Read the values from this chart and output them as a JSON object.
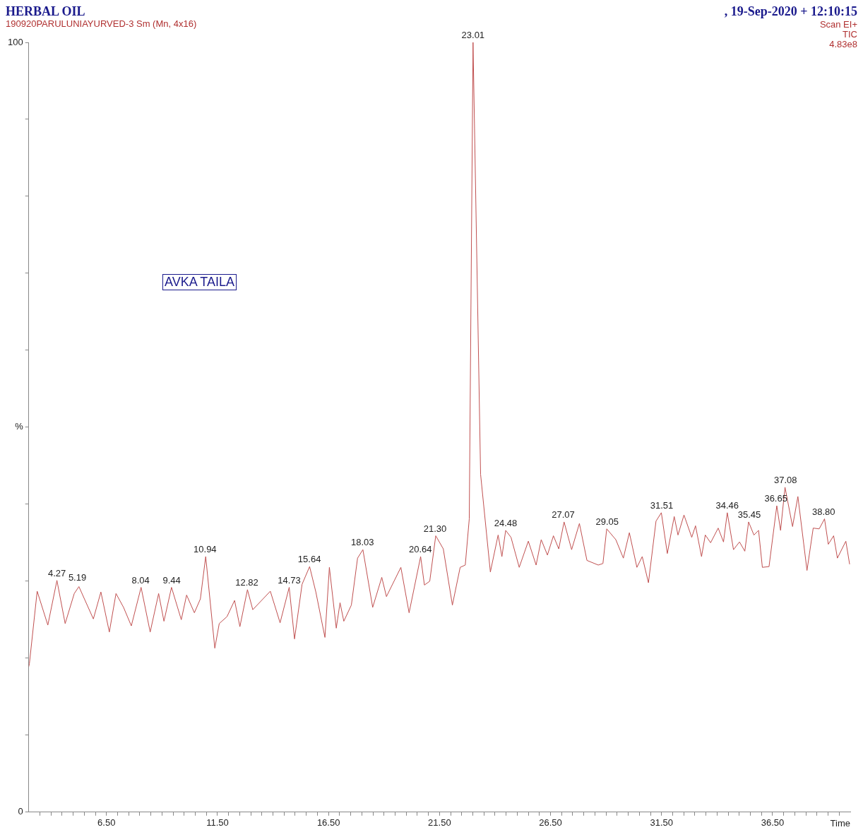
{
  "chart_data": {
    "type": "line",
    "title": "HERBAL OIL",
    "subtitle": "190920PARULUNIAYURVED-3 Sm (Mn, 4x16)",
    "xlabel": "Time",
    "annotations": [
      ", 19-Sep-2020 + 12:10:15",
      "Scan EI+",
      "TIC",
      "4.83e8",
      "AVKA TAILA",
      {
        "text": "4.27",
        "x": 4.27,
        "y": 30.1
      },
      {
        "text": "5.19",
        "x": 5.19,
        "y": 29.5
      },
      {
        "text": "8.04",
        "x": 8.04,
        "y": 29.2
      },
      {
        "text": "9.44",
        "x": 9.44,
        "y": 29.2
      },
      {
        "text": "10.94",
        "x": 10.94,
        "y": 33.2
      },
      {
        "text": "12.82",
        "x": 12.82,
        "y": 28.9
      },
      {
        "text": "14.73",
        "x": 14.73,
        "y": 29.2
      },
      {
        "text": "15.64",
        "x": 15.64,
        "y": 31.9
      },
      {
        "text": "18.03",
        "x": 18.03,
        "y": 34.1
      },
      {
        "text": "20.64",
        "x": 20.64,
        "y": 33.2
      },
      {
        "text": "21.30",
        "x": 21.3,
        "y": 35.9
      },
      {
        "text": "23.01",
        "x": 23.01,
        "y": 100
      },
      {
        "text": "24.48",
        "x": 24.48,
        "y": 36.6
      },
      {
        "text": "27.07",
        "x": 27.07,
        "y": 37.7
      },
      {
        "text": "29.05",
        "x": 29.05,
        "y": 36.8
      },
      {
        "text": "31.51",
        "x": 31.51,
        "y": 38.9
      },
      {
        "text": "34.46",
        "x": 34.46,
        "y": 38.9
      },
      {
        "text": "35.45",
        "x": 35.45,
        "y": 37.7
      },
      {
        "text": "36.65",
        "x": 36.65,
        "y": 39.8
      },
      {
        "text": "37.08",
        "x": 37.08,
        "y": 42.2
      },
      {
        "text": "38.80",
        "x": 38.8,
        "y": 38.1
      }
    ],
    "xlim": [
      3,
      40
    ],
    "xticks": [
      {
        "value": 3.5,
        "label": null
      },
      {
        "value": 4,
        "label": null
      },
      {
        "value": 4.5,
        "label": null
      },
      {
        "value": 5,
        "label": null
      },
      {
        "value": 5.5,
        "label": null
      },
      {
        "value": 6,
        "label": null
      },
      {
        "value": 6.5,
        "label": "6.50"
      },
      {
        "value": 7,
        "label": null
      },
      {
        "value": 7.5,
        "label": null
      },
      {
        "value": 8,
        "label": null
      },
      {
        "value": 8.5,
        "label": null
      },
      {
        "value": 9,
        "label": null
      },
      {
        "value": 9.5,
        "label": null
      },
      {
        "value": 10,
        "label": null
      },
      {
        "value": 10.5,
        "label": null
      },
      {
        "value": 11,
        "label": null
      },
      {
        "value": 11.5,
        "label": "11.50"
      },
      {
        "value": 12,
        "label": null
      },
      {
        "value": 12.5,
        "label": null
      },
      {
        "value": 13,
        "label": null
      },
      {
        "value": 13.5,
        "label": null
      },
      {
        "value": 14,
        "label": null
      },
      {
        "value": 14.5,
        "label": null
      },
      {
        "value": 15,
        "label": null
      },
      {
        "value": 15.5,
        "label": null
      },
      {
        "value": 16,
        "label": null
      },
      {
        "value": 16.5,
        "label": "16.50"
      },
      {
        "value": 17,
        "label": null
      },
      {
        "value": 17.5,
        "label": null
      },
      {
        "value": 18,
        "label": null
      },
      {
        "value": 18.5,
        "label": null
      },
      {
        "value": 19,
        "label": null
      },
      {
        "value": 19.5,
        "label": null
      },
      {
        "value": 20,
        "label": null
      },
      {
        "value": 20.5,
        "label": null
      },
      {
        "value": 21,
        "label": null
      },
      {
        "value": 21.5,
        "label": "21.50"
      },
      {
        "value": 22,
        "label": null
      },
      {
        "value": 22.5,
        "label": null
      },
      {
        "value": 23,
        "label": null
      },
      {
        "value": 23.5,
        "label": null
      },
      {
        "value": 24,
        "label": null
      },
      {
        "value": 24.5,
        "label": null
      },
      {
        "value": 25,
        "label": null
      },
      {
        "value": 25.5,
        "label": null
      },
      {
        "value": 26,
        "label": null
      },
      {
        "value": 26.5,
        "label": "26.50"
      },
      {
        "value": 27,
        "label": null
      },
      {
        "value": 27.5,
        "label": null
      },
      {
        "value": 28,
        "label": null
      },
      {
        "value": 28.5,
        "label": null
      },
      {
        "value": 29,
        "label": null
      },
      {
        "value": 29.5,
        "label": null
      },
      {
        "value": 30,
        "label": null
      },
      {
        "value": 30.5,
        "label": null
      },
      {
        "value": 31,
        "label": null
      },
      {
        "value": 31.5,
        "label": "31.50"
      },
      {
        "value": 32,
        "label": null
      },
      {
        "value": 32.5,
        "label": null
      },
      {
        "value": 33,
        "label": null
      },
      {
        "value": 33.5,
        "label": null
      },
      {
        "value": 34,
        "label": null
      },
      {
        "value": 34.5,
        "label": null
      },
      {
        "value": 35,
        "label": null
      },
      {
        "value": 35.5,
        "label": null
      },
      {
        "value": 36,
        "label": null
      },
      {
        "value": 36.5,
        "label": "36.50"
      },
      {
        "value": 37,
        "label": null
      },
      {
        "value": 37.5,
        "label": null
      },
      {
        "value": 38,
        "label": null
      },
      {
        "value": 38.5,
        "label": null
      },
      {
        "value": 39,
        "label": null
      },
      {
        "value": 39.5,
        "label": null
      }
    ],
    "ylim": [
      0,
      100
    ],
    "yticks": [
      0,
      {
        "value": 10,
        "label": null
      },
      {
        "value": 20,
        "label": null
      },
      {
        "value": 30,
        "label": null
      },
      {
        "value": 40,
        "label": null
      },
      {
        "value": 50,
        "label": "%"
      },
      {
        "value": 60,
        "label": null
      },
      {
        "value": 70,
        "label": null
      },
      {
        "value": 80,
        "label": null
      },
      {
        "value": 90,
        "label": null
      },
      100
    ],
    "grid": false,
    "legend": false,
    "marker": "none",
    "line_style": "solid",
    "series": [
      {
        "color": "#c05050",
        "x": [
          3,
          3.03,
          3.38,
          3.86,
          4.27,
          4.64,
          5.05,
          5.26,
          5.91,
          6.25,
          6.63,
          6.93,
          7.27,
          7.62,
          8.06,
          8.47,
          8.85,
          9.09,
          9.43,
          9.87,
          10.11,
          10.46,
          10.73,
          10.97,
          11.38,
          11.58,
          11.93,
          12.27,
          12.51,
          12.85,
          13.09,
          13.88,
          14.32,
          14.73,
          14.97,
          15.31,
          15.65,
          15.93,
          16.34,
          16.54,
          16.85,
          17.02,
          17.19,
          17.53,
          17.81,
          18.05,
          18.49,
          18.9,
          19.11,
          19.76,
          20.13,
          20.65,
          20.82,
          21.06,
          21.33,
          21.67,
          22.08,
          22.43,
          22.66,
          22.84,
          23.01,
          23.35,
          23.79,
          24.14,
          24.31,
          24.48,
          24.72,
          25.09,
          25.5,
          25.85,
          26.08,
          26.36,
          26.63,
          26.87,
          27.11,
          27.45,
          27.8,
          28.14,
          28.65,
          28.86,
          29.03,
          29.44,
          29.78,
          30.05,
          30.39,
          30.63,
          30.91,
          31.25,
          31.49,
          31.76,
          32.07,
          32.24,
          32.51,
          32.86,
          33.03,
          33.3,
          33.47,
          33.71,
          34.05,
          34.29,
          34.46,
          34.74,
          35.01,
          35.25,
          35.42,
          35.66,
          35.87,
          36.04,
          36.34,
          36.69,
          36.86,
          37.06,
          37.4,
          37.64,
          38.05,
          38.33,
          38.6,
          38.84,
          39.01,
          39.25,
          39.42,
          39.8,
          39.97
        ],
        "values": [
          18.9,
          19.3,
          28.7,
          24.3,
          30.1,
          24.5,
          28.4,
          29.3,
          25.1,
          28.6,
          23.4,
          28.4,
          26.6,
          24.2,
          29.2,
          23.4,
          28.4,
          24.8,
          29.2,
          25.0,
          28.2,
          25.9,
          27.7,
          33.2,
          21.3,
          24.5,
          25.4,
          27.5,
          24.1,
          28.9,
          26.3,
          28.7,
          24.6,
          29.2,
          22.5,
          29.6,
          31.9,
          28.6,
          22.7,
          31.8,
          23.9,
          27.2,
          24.8,
          26.9,
          33.0,
          34.1,
          26.6,
          30.5,
          28.0,
          31.8,
          25.9,
          33.2,
          29.5,
          30.0,
          35.9,
          34.2,
          26.9,
          31.8,
          32.1,
          38.1,
          100,
          43.9,
          31.2,
          36.0,
          33.2,
          36.6,
          35.7,
          31.8,
          35.2,
          32.1,
          35.4,
          33.4,
          35.9,
          34.2,
          37.7,
          34.1,
          37.5,
          32.7,
          32.1,
          32.3,
          36.8,
          35.4,
          33.0,
          36.3,
          31.8,
          33.2,
          29.8,
          37.8,
          38.9,
          33.6,
          38.4,
          36.0,
          38.6,
          35.7,
          37.2,
          33.2,
          36.0,
          35.0,
          36.9,
          35.1,
          38.9,
          34.1,
          35.1,
          33.9,
          37.7,
          36.0,
          36.6,
          31.8,
          31.9,
          39.8,
          36.6,
          42.2,
          37.1,
          41.0,
          31.4,
          36.9,
          36.8,
          38.1,
          34.8,
          35.9,
          33.0,
          35.2,
          32.2
        ]
      }
    ]
  }
}
